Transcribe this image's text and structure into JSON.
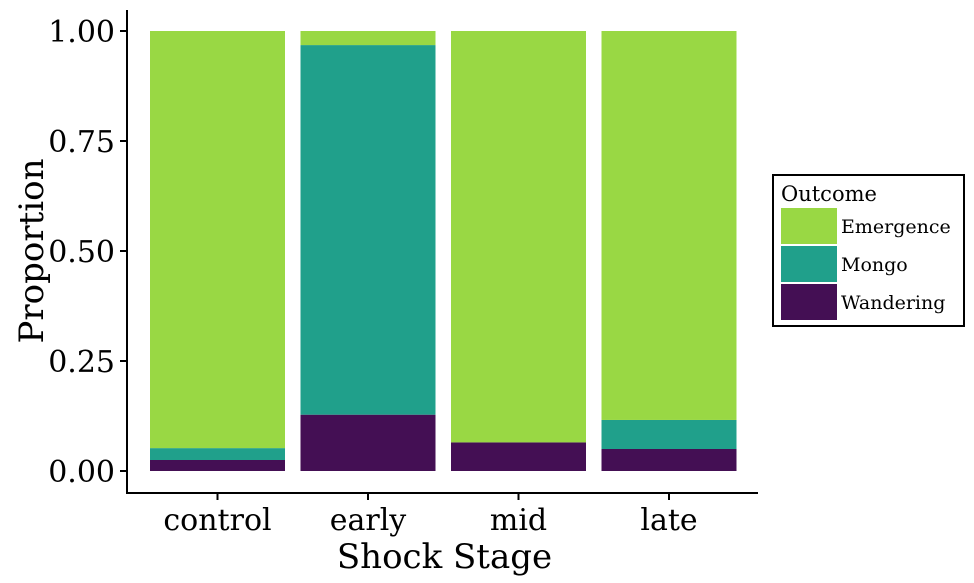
{
  "chart_data": {
    "type": "bar",
    "stacked": true,
    "categories": [
      "control",
      "early",
      "mid",
      "late"
    ],
    "series": [
      {
        "name": "Wandering",
        "color": "#440f54",
        "values": [
          0.025,
          0.128,
          0.065,
          0.05
        ]
      },
      {
        "name": "Mongo",
        "color": "#20a08b",
        "values": [
          0.027,
          0.84,
          0.0,
          0.066
        ]
      },
      {
        "name": "Emergence",
        "color": "#99d844",
        "values": [
          0.948,
          0.032,
          0.935,
          0.884
        ]
      }
    ],
    "xlabel": "Shock Stage",
    "ylabel": "Proportion",
    "ylim": [
      0,
      1
    ],
    "yticks": [
      "0.00",
      "0.25",
      "0.50",
      "0.75",
      "1.00"
    ],
    "grid": false,
    "legend": {
      "title": "Outcome",
      "position": "right",
      "order": [
        "Emergence",
        "Mongo",
        "Wandering"
      ]
    }
  }
}
